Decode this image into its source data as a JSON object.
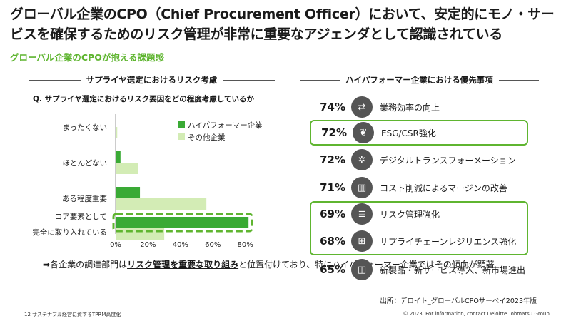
{
  "title": "グローバル企業のCPO（Chief Procurement Officer）において、安定的にモノ・サービスを確保するためのリスク管理が非常に重要なアジェンダとして認識されている",
  "subtitle": "グローバル企業のCPOが抱える課題感",
  "left_section_title": "サプライヤ選定におけるリスク考慮",
  "right_section_title": "ハイパフォーマー企業における優先事項",
  "question": "Q. サプライヤ選定におけるリスク要因をどの程度考慮しているか",
  "chart_data": {
    "type": "bar",
    "orientation": "horizontal",
    "categories": [
      "まったくない",
      "ほとんどない",
      "ある程度重要",
      "コア要素として完全に取り入れている"
    ],
    "category_lines": [
      [
        "まったくない"
      ],
      [
        "ほとんどない"
      ],
      [
        "ある程度重要"
      ],
      [
        "コア要素として",
        "完全に取り入れている"
      ]
    ],
    "series": [
      {
        "name": "ハイパフォーマー企業",
        "values": [
          0,
          3,
          15,
          82
        ],
        "color": "#3aaa35"
      },
      {
        "name": "その他企業",
        "values": [
          1,
          14,
          56,
          30
        ],
        "color": "#d3ecb5"
      }
    ],
    "x_ticks": [
      "0%",
      "20%",
      "40%",
      "60%",
      "80%"
    ],
    "xlim": [
      0,
      85
    ],
    "legend_position": "top-right",
    "highlight_category": "コア要素として完全に取り入れている"
  },
  "note": {
    "arrow": "➡",
    "part1": "各企業の調達部門は",
    "emphasis": "リスク管理を重要な取り組み",
    "part2": "と位置付けており、特にハイパフォーマー企業ではその傾向が顕著"
  },
  "priorities": [
    {
      "pct": "74%",
      "icon": "handshake-icon",
      "glyph": "⇄",
      "label": "業務効率の向上",
      "boxed": false
    },
    {
      "pct": "72%",
      "icon": "leaf-icon",
      "glyph": "❦",
      "label": "ESG/CSR強化",
      "boxed": true
    },
    {
      "pct": "72%",
      "icon": "aperture-icon",
      "glyph": "✲",
      "label": "デジタルトランスフォーメーション",
      "boxed": false
    },
    {
      "pct": "71%",
      "icon": "bar-chart-icon",
      "glyph": "▥",
      "label": "コスト削減によるマージンの改善",
      "boxed": false
    },
    {
      "pct": "69%",
      "icon": "database-icon",
      "glyph": "≣",
      "label": "リスク管理強化",
      "boxed": true
    },
    {
      "pct": "68%",
      "icon": "network-icon",
      "glyph": "⊞",
      "label": "サプライチェーンレジリエンス強化",
      "boxed": true
    },
    {
      "pct": "65%",
      "icon": "product-icon",
      "glyph": "◫",
      "label": "新製品・新サービス導入、新市場進出",
      "boxed": false
    }
  ],
  "source": "出所：デロイト_グローバルCPOサーベイ2023年版",
  "footer_left": "12  サステナブル経営に資するTPRM高度化",
  "footer_right": "© 2023. For information, contact Deloitte Tohmatsu Group."
}
